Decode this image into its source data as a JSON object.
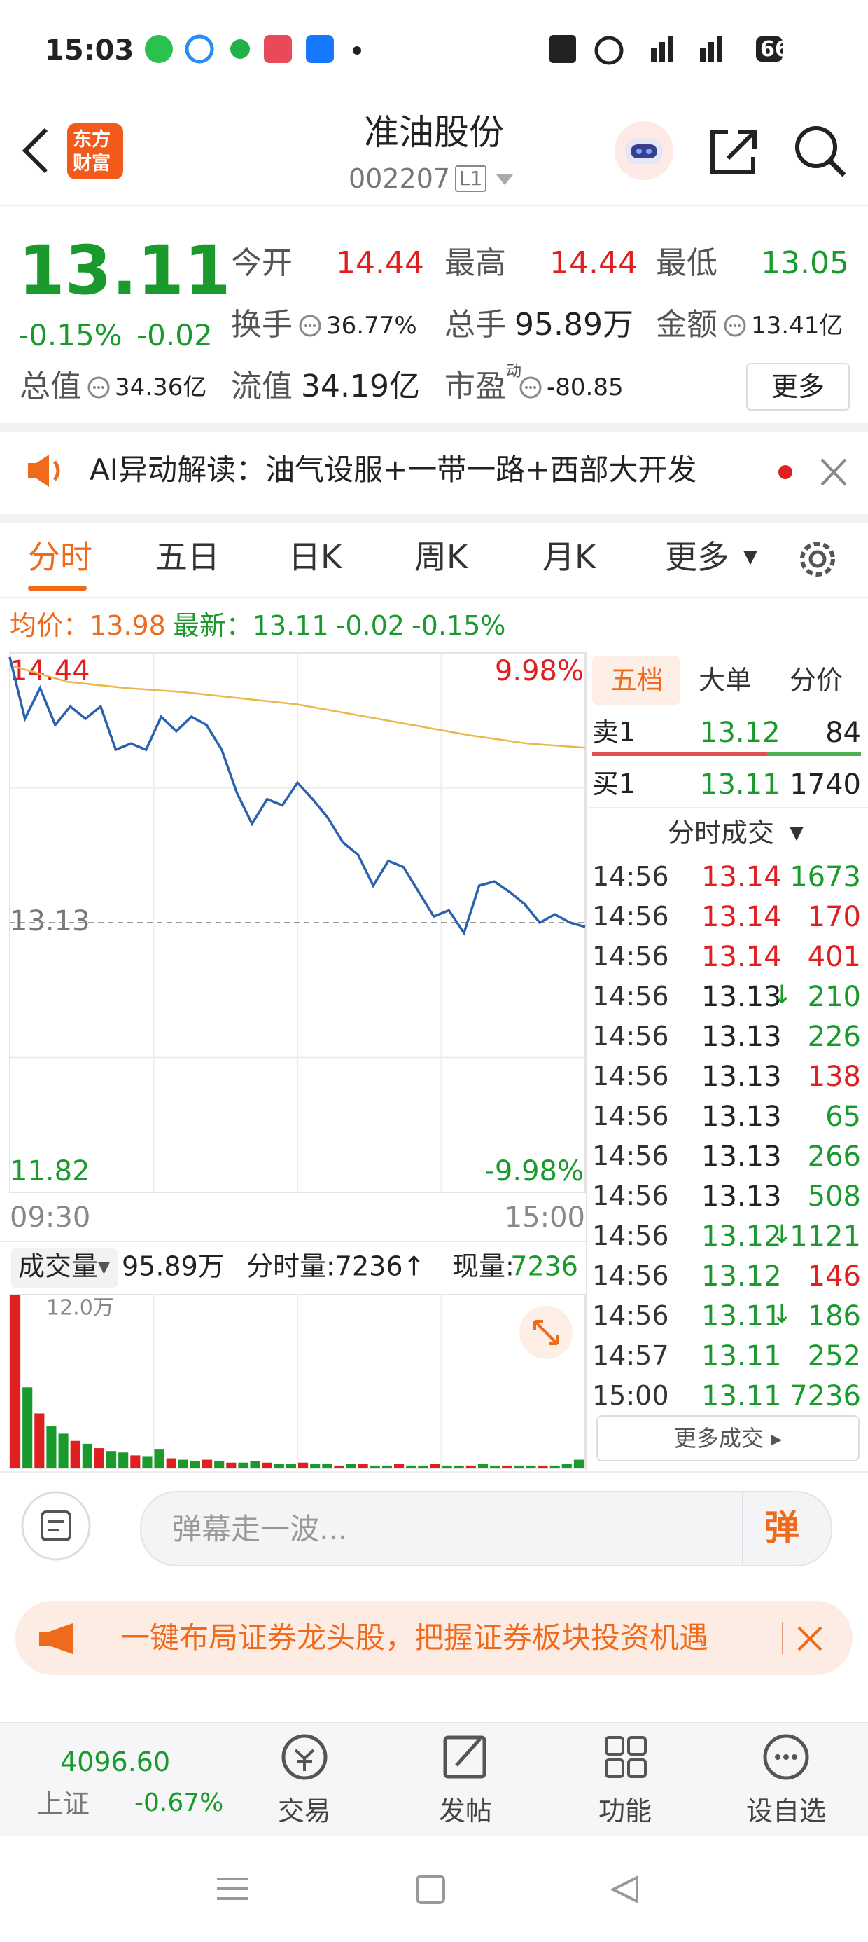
{
  "status_bar": {
    "time": "15:03",
    "battery": "66"
  },
  "header": {
    "logo_lines": [
      "东方",
      "财富"
    ],
    "title": "准油股份",
    "code": "002207",
    "market_badge": "L1"
  },
  "quote": {
    "price": "13.11",
    "change_pct": "-0.15%",
    "change": "-0.02",
    "fields": [
      {
        "label": "今开",
        "value": "14.44",
        "color": "#e02020"
      },
      {
        "label": "最高",
        "value": "14.44",
        "color": "#e02020"
      },
      {
        "label": "最低",
        "value": "13.05",
        "color": "#1a9a2c"
      },
      {
        "label": "换手",
        "value": "36.77%",
        "color": "#222222"
      },
      {
        "label": "总手",
        "value": "95.89万",
        "color": "#222222"
      },
      {
        "label": "金额",
        "value": "13.41亿",
        "color": "#222222"
      },
      {
        "label": "总值",
        "value": "34.36亿",
        "color": "#222222"
      },
      {
        "label": "流值",
        "value": "34.19亿",
        "color": "#222222"
      },
      {
        "label": "市盈",
        "label_sup": "动",
        "value": "-80.85",
        "color": "#222222"
      }
    ],
    "more": "更多"
  },
  "ai_bar": {
    "text": "AI异动解读：油气设服+一带一路+西部大开发"
  },
  "tabs": [
    "分时",
    "五日",
    "日K",
    "周K",
    "月K",
    "更多"
  ],
  "summary": {
    "avg_label": "均价：",
    "avg_value": "13.98",
    "latest_label": "最新：",
    "latest_value": "13.11",
    "change": "-0.02",
    "change_pct": "-0.15%"
  },
  "chart_data": [
    {
      "type": "line",
      "series": [
        {
          "color": "#2a62b0",
          "values": [
            14.42,
            14.12,
            14.27,
            14.09,
            14.18,
            14.12,
            14.18,
            13.97,
            14.0,
            13.97,
            14.13,
            14.06,
            14.13,
            14.09,
            13.97,
            13.76,
            13.61,
            13.73,
            13.7,
            13.81,
            13.73,
            13.64,
            13.52,
            13.46,
            13.31,
            13.43,
            13.4,
            13.28,
            13.16,
            13.19,
            13.08,
            13.31,
            13.33,
            13.28,
            13.22,
            13.13,
            13.17,
            13.13,
            13.11
          ]
        },
        {
          "color": "#e8b84a",
          "values": [
            14.38,
            14.3,
            14.27,
            14.25,
            14.22,
            14.19,
            14.14,
            14.09,
            14.04,
            14.0,
            13.98
          ]
        }
      ],
      "ylim": [
        11.82,
        14.44
      ],
      "yticks": [
        11.82,
        13.13,
        14.44
      ],
      "y2lim": [
        -9.98,
        9.98
      ],
      "y2ticks": [
        {
          "value": -9.98,
          "label": "-9.98%"
        },
        {
          "value": 9.98,
          "label": "9.98%"
        }
      ],
      "x_axis_labels": [
        "09:30",
        "15:00"
      ]
    },
    {
      "type": "bar",
      "title": "成交量",
      "total": "95.89万",
      "period_volume": "分时量:7236↑",
      "current_volume_label": "现量:",
      "current_volume": "7236",
      "ylim": [
        0,
        12
      ],
      "yticks": [
        {
          "value": 12,
          "label": "12.0万"
        }
      ],
      "values": [
        12.0,
        5.6,
        3.8,
        2.9,
        2.4,
        1.9,
        1.7,
        1.4,
        1.2,
        1.1,
        0.9,
        0.8,
        1.3,
        0.7,
        0.6,
        0.5,
        0.6,
        0.5,
        0.4,
        0.4,
        0.5,
        0.4,
        0.3,
        0.3,
        0.4,
        0.3,
        0.3,
        0.2,
        0.3,
        0.3,
        0.2,
        0.2,
        0.3,
        0.2,
        0.2,
        0.3,
        0.2,
        0.2,
        0.2,
        0.3,
        0.2,
        0.2,
        0.2,
        0.2,
        0.2,
        0.2,
        0.3,
        0.6
      ],
      "colors": [
        "#e02020",
        "#1a9a2c",
        "#e02020",
        "#1a9a2c",
        "#1a9a2c",
        "#e02020",
        "#1a9a2c",
        "#e02020",
        "#1a9a2c",
        "#1a9a2c",
        "#e02020",
        "#1a9a2c",
        "#1a9a2c",
        "#e02020",
        "#1a9a2c",
        "#1a9a2c",
        "#e02020",
        "#1a9a2c",
        "#e02020",
        "#1a9a2c",
        "#1a9a2c",
        "#e02020",
        "#1a9a2c",
        "#1a9a2c",
        "#e02020",
        "#1a9a2c",
        "#1a9a2c",
        "#e02020",
        "#1a9a2c",
        "#e02020",
        "#1a9a2c",
        "#1a9a2c",
        "#e02020",
        "#1a9a2c",
        "#1a9a2c",
        "#e02020",
        "#1a9a2c",
        "#1a9a2c",
        "#e02020",
        "#1a9a2c",
        "#1a9a2c",
        "#e02020",
        "#1a9a2c",
        "#1a9a2c",
        "#e02020",
        "#1a9a2c",
        "#1a9a2c",
        "#1a9a2c"
      ]
    }
  ],
  "order_book": {
    "tabs": [
      "五档",
      "大单",
      "分价"
    ],
    "asks": [
      {
        "label": "卖1",
        "price": "13.12",
        "volume": "84"
      }
    ],
    "bids": [
      {
        "label": "买1",
        "price": "13.11",
        "volume": "1740"
      }
    ],
    "trades_title": "分时成交",
    "trades": [
      {
        "time": "14:56",
        "price": "13.14",
        "volume": "1673",
        "price_color": "#e02020",
        "volume_color": "#1a9a2c"
      },
      {
        "time": "14:56",
        "price": "13.14",
        "volume": "170",
        "price_color": "#e02020",
        "volume_color": "#e02020"
      },
      {
        "time": "14:56",
        "price": "13.14",
        "volume": "401",
        "price_color": "#e02020",
        "volume_color": "#e02020"
      },
      {
        "time": "14:56",
        "price": "13.13",
        "flag": "↓",
        "volume": "210",
        "price_color": "#222222",
        "volume_color": "#1a9a2c"
      },
      {
        "time": "14:56",
        "price": "13.13",
        "volume": "226",
        "price_color": "#222222",
        "volume_color": "#1a9a2c"
      },
      {
        "time": "14:56",
        "price": "13.13",
        "volume": "138",
        "price_color": "#222222",
        "volume_color": "#e02020"
      },
      {
        "time": "14:56",
        "price": "13.13",
        "volume": "65",
        "price_color": "#222222",
        "volume_color": "#1a9a2c"
      },
      {
        "time": "14:56",
        "price": "13.13",
        "volume": "266",
        "price_color": "#222222",
        "volume_color": "#1a9a2c"
      },
      {
        "time": "14:56",
        "price": "13.13",
        "volume": "508",
        "price_color": "#222222",
        "volume_color": "#1a9a2c"
      },
      {
        "time": "14:56",
        "price": "13.12",
        "flag": "↓",
        "volume": "1121",
        "price_color": "#1a9a2c",
        "volume_color": "#1a9a2c"
      },
      {
        "time": "14:56",
        "price": "13.12",
        "volume": "146",
        "price_color": "#1a9a2c",
        "volume_color": "#e02020"
      },
      {
        "time": "14:56",
        "price": "13.11",
        "flag": "↓",
        "volume": "186",
        "price_color": "#1a9a2c",
        "volume_color": "#1a9a2c"
      },
      {
        "time": "14:57",
        "price": "13.11",
        "volume": "252",
        "price_color": "#1a9a2c",
        "volume_color": "#1a9a2c"
      },
      {
        "time": "15:00",
        "price": "13.11",
        "volume": "7236",
        "price_color": "#1a9a2c",
        "volume_color": "#1a9a2c"
      }
    ],
    "more": "更多成交"
  },
  "comment_bar": {
    "placeholder": "弹幕走一波...",
    "send": "弹"
  },
  "banner": {
    "text": "一键布局证券龙头股，把握证券板块投资机遇"
  },
  "bottom_nav": {
    "index_value": "4096.60",
    "index_name": "上证",
    "index_change": "-0.67%",
    "items": [
      "交易",
      "发帖",
      "功能",
      "设自选"
    ]
  }
}
